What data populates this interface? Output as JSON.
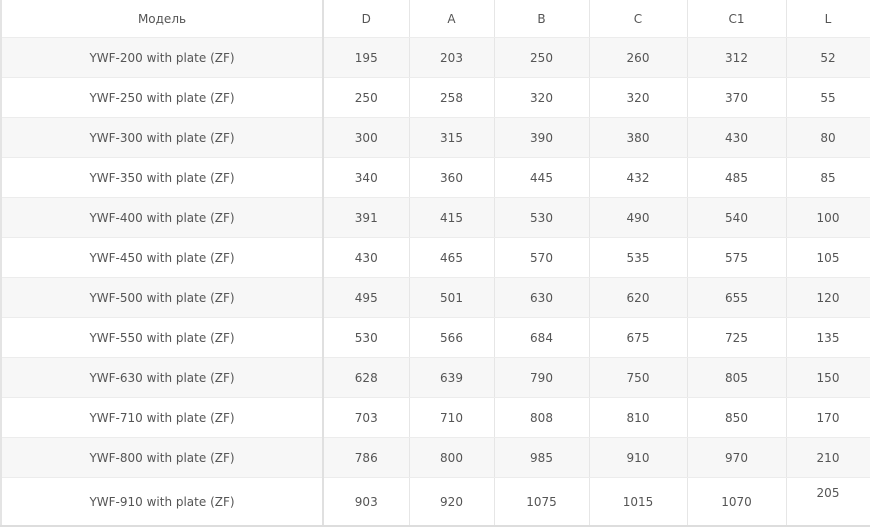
{
  "table": {
    "headers": [
      "Модель",
      "D",
      "A",
      "B",
      "C",
      "C1",
      "L"
    ],
    "rows": [
      [
        "YWF-200 with plate (ZF)",
        "195",
        "203",
        "250",
        "260",
        "312",
        "52"
      ],
      [
        "YWF-250 with plate (ZF)",
        "250",
        "258",
        "320",
        "320",
        "370",
        "55"
      ],
      [
        "YWF-300 with plate (ZF)",
        "300",
        "315",
        "390",
        "380",
        "430",
        "80"
      ],
      [
        "YWF-350 with plate (ZF)",
        "340",
        "360",
        "445",
        "432",
        "485",
        "85"
      ],
      [
        "YWF-400 with plate (ZF)",
        "391",
        "415",
        "530",
        "490",
        "540",
        "100"
      ],
      [
        "YWF-450 with plate (ZF)",
        "430",
        "465",
        "570",
        "535",
        "575",
        "105"
      ],
      [
        "YWF-500 with plate (ZF)",
        "495",
        "501",
        "630",
        "620",
        "655",
        "120"
      ],
      [
        "YWF-550 with plate (ZF)",
        "530",
        "566",
        "684",
        "675",
        "725",
        "135"
      ],
      [
        "YWF-630 with plate (ZF)",
        "628",
        "639",
        "790",
        "750",
        "805",
        "150"
      ],
      [
        "YWF-710 with plate (ZF)",
        "703",
        "710",
        "808",
        "810",
        "850",
        "170"
      ],
      [
        "YWF-800 with plate (ZF)",
        "786",
        "800",
        "985",
        "910",
        "970",
        "210"
      ],
      [
        "YWF-910 with plate (ZF)",
        "903",
        "920",
        "1075",
        "1015",
        "1070",
        "205"
      ]
    ]
  }
}
